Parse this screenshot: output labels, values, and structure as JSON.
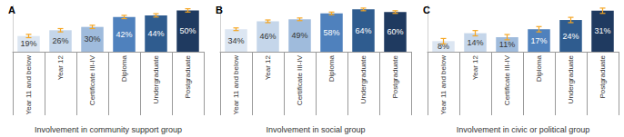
{
  "chart_data": [
    {
      "type": "bar",
      "title": "A",
      "xlabel": "Involvement in community support group",
      "categories": [
        "Year 11 and below",
        "Year 12",
        "Certificate III-IV",
        "Diploma",
        "Undergraduate",
        "Postgraduate"
      ],
      "values": [
        19,
        26,
        30,
        42,
        44,
        50
      ],
      "value_labels": [
        "19%",
        "26%",
        "30%",
        "42%",
        "44%",
        "50%"
      ],
      "errors": [
        2,
        2,
        2,
        2,
        2,
        2
      ],
      "colors": [
        "#dce6f2",
        "#c5d6ea",
        "#9fbbdc",
        "#4f81bd",
        "#2f5c8f",
        "#1f3a60"
      ],
      "ylim": [
        0,
        56
      ],
      "data_labels": true,
      "tick_labels": "x"
    },
    {
      "type": "bar",
      "title": "B",
      "xlabel": "Involvement in social group",
      "categories": [
        "Year 11 and below",
        "Year 12",
        "Certificate III-IV",
        "Diploma",
        "Undergraduate",
        "Postgraduate"
      ],
      "values": [
        34,
        46,
        49,
        58,
        64,
        60
      ],
      "value_labels": [
        "34%",
        "46%",
        "49%",
        "58%",
        "64%",
        "60%"
      ],
      "errors": [
        2,
        2,
        2,
        2,
        2,
        2
      ],
      "colors": [
        "#dce6f2",
        "#c5d6ea",
        "#9fbbdc",
        "#4f81bd",
        "#2f5c8f",
        "#1f3a60"
      ],
      "ylim": [
        0,
        70
      ],
      "data_labels": true,
      "tick_labels": "x"
    },
    {
      "type": "bar",
      "title": "C",
      "xlabel": "Involvement in civic or political group",
      "categories": [
        "Year 11 and below",
        "Year 12",
        "Certificate III-IV",
        "Diploma",
        "Undergraduate",
        "Postgraduate"
      ],
      "values": [
        8,
        14,
        11,
        17,
        24,
        31
      ],
      "value_labels": [
        "8%",
        "14%",
        "11%",
        "17%",
        "24%",
        "31%"
      ],
      "errors": [
        2,
        2,
        2,
        2,
        2,
        2
      ],
      "colors": [
        "#dce6f2",
        "#c5d6ea",
        "#9fbbdc",
        "#4f81bd",
        "#2f5c8f",
        "#1f3a60"
      ],
      "ylim": [
        0,
        35
      ],
      "data_labels": true,
      "tick_labels": "x"
    }
  ]
}
